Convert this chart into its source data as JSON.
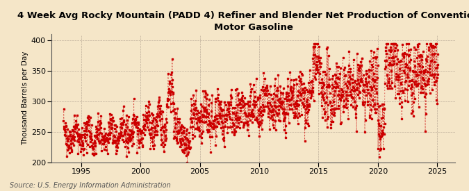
{
  "title": "4 Week Avg Rocky Mountain (PADD 4) Refiner and Blender Net Production of Conventional\nMotor Gasoline",
  "ylabel": "Thousand Barrels per Day",
  "source": "Source: U.S. Energy Information Administration",
  "xlim": [
    1992.5,
    2026.5
  ],
  "ylim": [
    200,
    410
  ],
  "yticks": [
    200,
    250,
    300,
    350,
    400
  ],
  "xticks": [
    1995,
    2000,
    2005,
    2010,
    2015,
    2020,
    2025
  ],
  "background_color": "#f5e6c8",
  "plot_bg_color": "#f5e6c8",
  "line_color": "#cc0000",
  "title_fontsize": 9.5,
  "ylabel_fontsize": 7.5,
  "source_fontsize": 7.0,
  "tick_fontsize": 8
}
